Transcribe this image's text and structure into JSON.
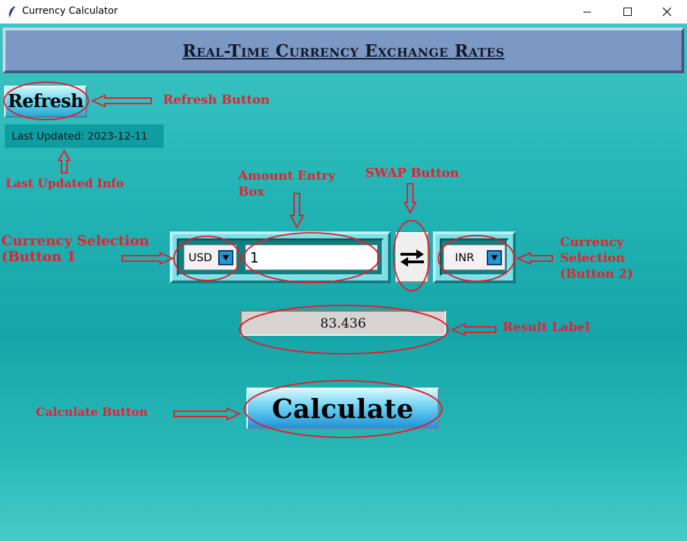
{
  "window": {
    "title": "Currency Calculator",
    "icon": "feather-icon",
    "controls": [
      "minimize-icon",
      "maximize-icon",
      "close-icon"
    ]
  },
  "header": {
    "title": "Real-Time Currency Exchange Rates"
  },
  "refresh": {
    "label": "Refresh"
  },
  "last_updated": {
    "text": "Last Updated: 2023-12-11"
  },
  "converter": {
    "from_currency": "USD",
    "amount": "1",
    "to_currency": "INR",
    "swap_icon": "swap-arrows-icon",
    "dropdown_icon": "chevron-down-icon"
  },
  "result": {
    "value": "83.436"
  },
  "calculate": {
    "label": "Calculate"
  },
  "annotations": {
    "refresh_button": "Refresh Button",
    "last_updated_info": "Last Updated Info",
    "amount_entry_box": "Amount Entry Box",
    "swap_button": "SWAP Button",
    "currency_selection_1": "Currency Selection (Button 1",
    "currency_selection_2": "Currency Selection (Button 2)",
    "result_label": "Result Label",
    "calculate_button": "Calculate Button"
  },
  "colors": {
    "background": "#22b3b4",
    "header_bar": "#7c98c4",
    "annotation": "#e8202e",
    "button_gradient_bottom": "#1f94d8"
  }
}
